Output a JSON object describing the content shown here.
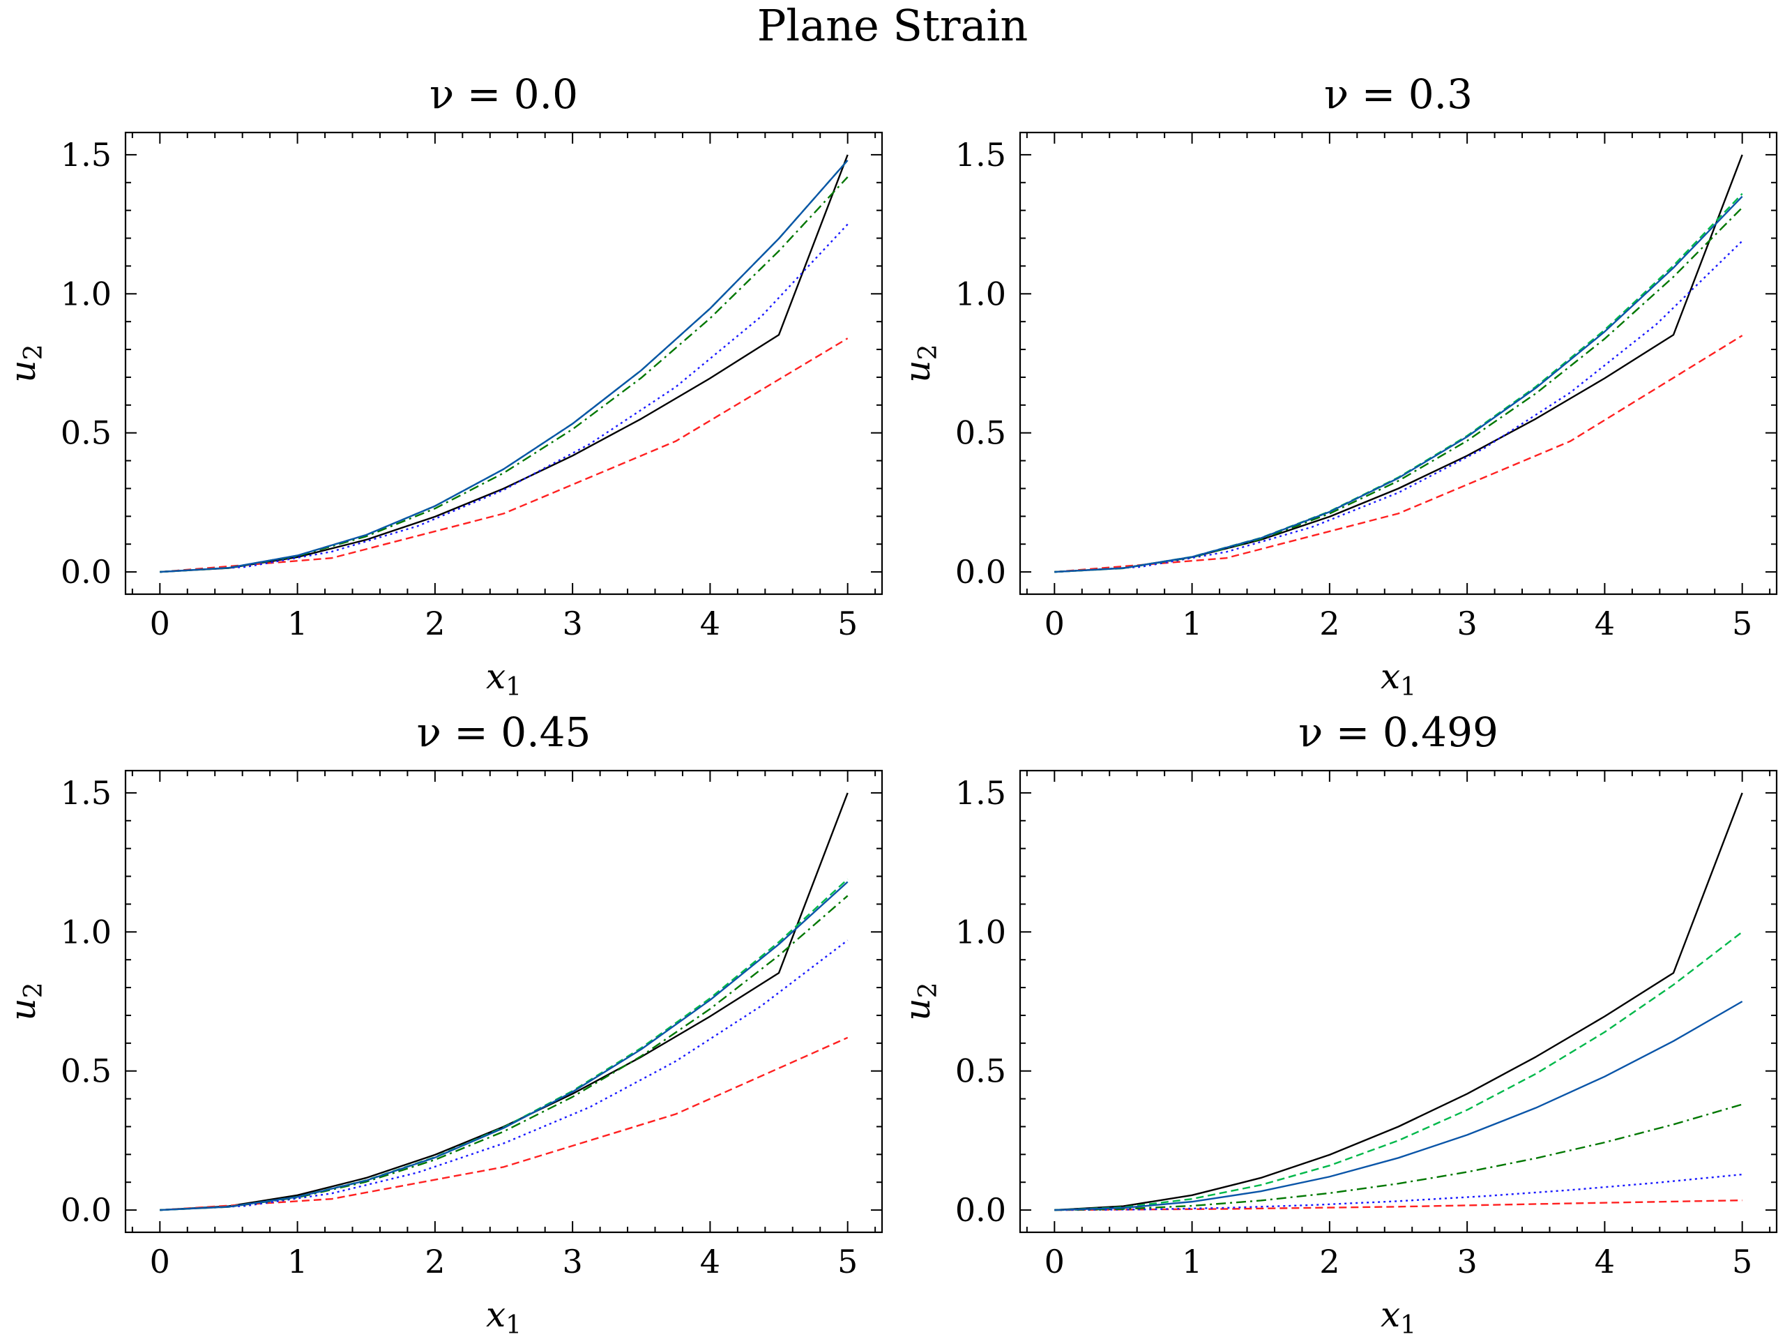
{
  "figure": {
    "suptitle": "Plane Strain"
  },
  "colors": {
    "exact": "#000000",
    "red_dashed": "#ff2020",
    "blue_dotted": "#1a1aff",
    "darkgreen_dashdot": "#007700",
    "green_dashed": "#00b84a",
    "blue_solid": "#0a55a8"
  },
  "chart_data": [
    {
      "type": "line",
      "title": "ν = 0.0",
      "xlabel": "x1",
      "ylabel": "u2",
      "xlim": [
        -0.25,
        5.25
      ],
      "ylim": [
        -0.08,
        1.58
      ],
      "xticks": [
        0,
        1,
        2,
        3,
        4,
        5
      ],
      "yticks": [
        0.0,
        0.5,
        1.0,
        1.5
      ],
      "xtick_labels": [
        "0",
        "1",
        "2",
        "3",
        "4",
        "5"
      ],
      "ytick_labels": [
        "0.0",
        "0.5",
        "1.0",
        "1.5"
      ],
      "series": [
        {
          "style": "solid",
          "color": "#000000",
          "x": [
            0,
            0.5,
            1,
            1.5,
            2,
            2.5,
            3,
            3.5,
            4,
            4.5,
            5
          ],
          "y": [
            0,
            0.0139,
            0.0533,
            0.1157,
            0.1987,
            0.2999,
            0.418,
            0.5509,
            0.6964,
            0.8526,
            1.5
          ]
        },
        {
          "style": "dashed",
          "color": "#ff2020",
          "x": [
            0,
            1.25,
            2.5,
            3.75,
            5
          ],
          "y": [
            0,
            0.05,
            0.21,
            0.47,
            0.84
          ]
        },
        {
          "style": "dotted",
          "color": "#1a1aff",
          "x": [
            0,
            0.625,
            1.25,
            1.875,
            2.5,
            3.125,
            3.75,
            4.375,
            5
          ],
          "y": [
            0,
            0.018,
            0.073,
            0.165,
            0.295,
            0.46,
            0.665,
            0.92,
            1.25
          ]
        },
        {
          "style": "dashdot",
          "color": "#007700",
          "x": [
            0,
            0.5,
            1,
            1.5,
            2,
            2.5,
            3,
            3.5,
            4,
            4.5,
            5
          ],
          "y": [
            0,
            0.0143,
            0.057,
            0.128,
            0.228,
            0.356,
            0.513,
            0.698,
            0.912,
            1.154,
            1.42
          ]
        },
        {
          "style": "dashed",
          "color": "#00b84a",
          "x": [
            0,
            0.5,
            1,
            1.5,
            2,
            2.5,
            3,
            3.5,
            4,
            4.5,
            5
          ],
          "y": [
            0,
            0.0148,
            0.059,
            0.133,
            0.237,
            0.37,
            0.533,
            0.725,
            0.947,
            1.199,
            1.48
          ]
        },
        {
          "style": "solid",
          "color": "#0a55a8",
          "x": [
            0,
            0.5,
            1,
            1.5,
            2,
            2.5,
            3,
            3.5,
            4,
            4.5,
            5
          ],
          "y": [
            0,
            0.0148,
            0.0592,
            0.1332,
            0.2368,
            0.37,
            0.5328,
            0.7252,
            0.9472,
            1.1988,
            1.48
          ]
        }
      ]
    },
    {
      "type": "line",
      "title": "ν = 0.3",
      "xlabel": "x1",
      "ylabel": "u2",
      "xlim": [
        -0.25,
        5.25
      ],
      "ylim": [
        -0.08,
        1.58
      ],
      "xticks": [
        0,
        1,
        2,
        3,
        4,
        5
      ],
      "yticks": [
        0.0,
        0.5,
        1.0,
        1.5
      ],
      "xtick_labels": [
        "0",
        "1",
        "2",
        "3",
        "4",
        "5"
      ],
      "ytick_labels": [
        "0.0",
        "0.5",
        "1.0",
        "1.5"
      ],
      "series": [
        {
          "style": "solid",
          "color": "#000000",
          "x": [
            0,
            0.5,
            1,
            1.5,
            2,
            2.5,
            3,
            3.5,
            4,
            4.5,
            5
          ],
          "y": [
            0,
            0.0139,
            0.0533,
            0.1157,
            0.1987,
            0.2999,
            0.418,
            0.5509,
            0.6964,
            0.8526,
            1.5
          ]
        },
        {
          "style": "dashed",
          "color": "#ff2020",
          "x": [
            0,
            1.25,
            2.5,
            3.75,
            5
          ],
          "y": [
            0,
            0.05,
            0.21,
            0.47,
            0.85
          ]
        },
        {
          "style": "dotted",
          "color": "#1a1aff",
          "x": [
            0,
            0.625,
            1.25,
            1.875,
            2.5,
            3.125,
            3.75,
            4.375,
            5
          ],
          "y": [
            0,
            0.018,
            0.072,
            0.162,
            0.285,
            0.445,
            0.645,
            0.89,
            1.19
          ]
        },
        {
          "style": "dashdot",
          "color": "#007700",
          "x": [
            0,
            0.5,
            1,
            1.5,
            2,
            2.5,
            3,
            3.5,
            4,
            4.5,
            5
          ],
          "y": [
            0,
            0.0131,
            0.0524,
            0.1179,
            0.2096,
            0.3275,
            0.4716,
            0.6419,
            0.8384,
            1.0611,
            1.31
          ]
        },
        {
          "style": "dashed",
          "color": "#00b84a",
          "x": [
            0,
            0.5,
            1,
            1.5,
            2,
            2.5,
            3,
            3.5,
            4,
            4.5,
            5
          ],
          "y": [
            0,
            0.0136,
            0.0544,
            0.1224,
            0.2176,
            0.34,
            0.4896,
            0.6664,
            0.8704,
            1.1016,
            1.36
          ]
        },
        {
          "style": "solid",
          "color": "#0a55a8",
          "x": [
            0,
            0.5,
            1,
            1.5,
            2,
            2.5,
            3,
            3.5,
            4,
            4.5,
            5
          ],
          "y": [
            0,
            0.0135,
            0.054,
            0.1215,
            0.216,
            0.3375,
            0.486,
            0.6615,
            0.864,
            1.0935,
            1.35
          ]
        }
      ]
    },
    {
      "type": "line",
      "title": "ν = 0.45",
      "xlabel": "x1",
      "ylabel": "u2",
      "xlim": [
        -0.25,
        5.25
      ],
      "ylim": [
        -0.08,
        1.58
      ],
      "xticks": [
        0,
        1,
        2,
        3,
        4,
        5
      ],
      "yticks": [
        0.0,
        0.5,
        1.0,
        1.5
      ],
      "xtick_labels": [
        "0",
        "1",
        "2",
        "3",
        "4",
        "5"
      ],
      "ytick_labels": [
        "0.0",
        "0.5",
        "1.0",
        "1.5"
      ],
      "series": [
        {
          "style": "solid",
          "color": "#000000",
          "x": [
            0,
            0.5,
            1,
            1.5,
            2,
            2.5,
            3,
            3.5,
            4,
            4.5,
            5
          ],
          "y": [
            0,
            0.0139,
            0.0533,
            0.1157,
            0.1987,
            0.2999,
            0.418,
            0.5509,
            0.6964,
            0.8526,
            1.5
          ]
        },
        {
          "style": "dashed",
          "color": "#ff2020",
          "x": [
            0,
            1.25,
            2.5,
            3.75,
            5
          ],
          "y": [
            0,
            0.04,
            0.155,
            0.345,
            0.62
          ]
        },
        {
          "style": "dotted",
          "color": "#1a1aff",
          "x": [
            0,
            0.625,
            1.25,
            1.875,
            2.5,
            3.125,
            3.75,
            4.375,
            5
          ],
          "y": [
            0,
            0.015,
            0.06,
            0.135,
            0.24,
            0.37,
            0.535,
            0.735,
            0.97
          ]
        },
        {
          "style": "dashdot",
          "color": "#007700",
          "x": [
            0,
            0.5,
            1,
            1.5,
            2,
            2.5,
            3,
            3.5,
            4,
            4.5,
            5
          ],
          "y": [
            0,
            0.0113,
            0.0452,
            0.1017,
            0.1808,
            0.2825,
            0.4068,
            0.5537,
            0.7232,
            0.9153,
            1.13
          ]
        },
        {
          "style": "dashed",
          "color": "#00b84a",
          "x": [
            0,
            0.5,
            1,
            1.5,
            2,
            2.5,
            3,
            3.5,
            4,
            4.5,
            5
          ],
          "y": [
            0,
            0.0119,
            0.0476,
            0.1071,
            0.1904,
            0.2975,
            0.4284,
            0.5831,
            0.7616,
            0.9639,
            1.19
          ]
        },
        {
          "style": "solid",
          "color": "#0a55a8",
          "x": [
            0,
            0.5,
            1,
            1.5,
            2,
            2.5,
            3,
            3.5,
            4,
            4.5,
            5
          ],
          "y": [
            0,
            0.0118,
            0.0472,
            0.1062,
            0.1888,
            0.295,
            0.4248,
            0.5782,
            0.7552,
            0.9558,
            1.18
          ]
        }
      ]
    },
    {
      "type": "line",
      "title": "ν = 0.499",
      "xlabel": "x1",
      "ylabel": "u2",
      "xlim": [
        -0.25,
        5.25
      ],
      "ylim": [
        -0.08,
        1.58
      ],
      "xticks": [
        0,
        1,
        2,
        3,
        4,
        5
      ],
      "yticks": [
        0.0,
        0.5,
        1.0,
        1.5
      ],
      "xtick_labels": [
        "0",
        "1",
        "2",
        "3",
        "4",
        "5"
      ],
      "ytick_labels": [
        "0.0",
        "0.5",
        "1.0",
        "1.5"
      ],
      "series": [
        {
          "style": "solid",
          "color": "#000000",
          "x": [
            0,
            0.5,
            1,
            1.5,
            2,
            2.5,
            3,
            3.5,
            4,
            4.5,
            5
          ],
          "y": [
            0,
            0.0139,
            0.0533,
            0.1157,
            0.1987,
            0.2999,
            0.418,
            0.5509,
            0.6964,
            0.8526,
            1.5
          ]
        },
        {
          "style": "dashed",
          "color": "#ff2020",
          "x": [
            0,
            1.25,
            2.5,
            3.75,
            5
          ],
          "y": [
            0,
            0.004,
            0.012,
            0.024,
            0.035
          ]
        },
        {
          "style": "dotted",
          "color": "#1a1aff",
          "x": [
            0,
            0.625,
            1.25,
            1.875,
            2.5,
            3.125,
            3.75,
            4.375,
            5
          ],
          "y": [
            0,
            0.002,
            0.008,
            0.018,
            0.032,
            0.05,
            0.072,
            0.098,
            0.128
          ]
        },
        {
          "style": "dashdot",
          "color": "#007700",
          "x": [
            0,
            0.5,
            1,
            1.5,
            2,
            2.5,
            3,
            3.5,
            4,
            4.5,
            5
          ],
          "y": [
            0,
            0.0038,
            0.0152,
            0.0342,
            0.0608,
            0.095,
            0.1368,
            0.1862,
            0.2432,
            0.3078,
            0.38
          ]
        },
        {
          "style": "dashed",
          "color": "#00b84a",
          "x": [
            0,
            0.5,
            1,
            1.5,
            2,
            2.5,
            3,
            3.5,
            4,
            4.5,
            5
          ],
          "y": [
            0,
            0.01,
            0.04,
            0.09,
            0.16,
            0.25,
            0.36,
            0.49,
            0.64,
            0.81,
            1.0
          ]
        },
        {
          "style": "solid",
          "color": "#0a55a8",
          "x": [
            0,
            0.5,
            1,
            1.5,
            2,
            2.5,
            3,
            3.5,
            4,
            4.5,
            5
          ],
          "y": [
            0,
            0.0075,
            0.03,
            0.0675,
            0.12,
            0.1875,
            0.27,
            0.3675,
            0.48,
            0.6075,
            0.75
          ]
        }
      ]
    }
  ]
}
